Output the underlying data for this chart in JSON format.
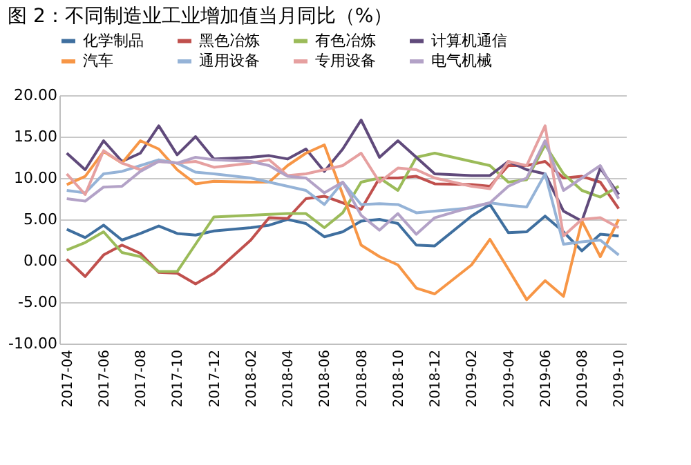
{
  "chart_data": {
    "type": "line",
    "title": "图 2：不同制造业工业增加值当月同比（%）",
    "categories": [
      "2017-04",
      null,
      "2017-06",
      null,
      "2017-08",
      null,
      "2017-10",
      null,
      "2017-12",
      null,
      "2018-02",
      null,
      "2018-04",
      null,
      "2018-06",
      null,
      "2018-08",
      null,
      "2018-10",
      null,
      "2018-12",
      null,
      "2019-02",
      null,
      "2019-04",
      null,
      "2019-06",
      null,
      "2019-08",
      null,
      "2019-10"
    ],
    "series": [
      {
        "name": "化学制品",
        "color": "#3f6f9f",
        "values": [
          3.8,
          2.8,
          4.3,
          2.5,
          3.3,
          4.2,
          3.3,
          3.1,
          3.6,
          null,
          4.0,
          4.3,
          5.0,
          4.5,
          2.9,
          3.5,
          4.8,
          5.0,
          4.5,
          1.9,
          1.8,
          null,
          5.4,
          6.8,
          3.4,
          3.5,
          5.4,
          3.5,
          1.2,
          3.2,
          3.0
        ]
      },
      {
        "name": "黑色冶炼",
        "color": "#c0504d",
        "values": [
          0.2,
          -1.9,
          0.7,
          1.9,
          0.9,
          -1.4,
          -1.5,
          -2.8,
          -1.5,
          null,
          2.5,
          5.2,
          5.1,
          7.5,
          7.8,
          7.0,
          6.2,
          10.0,
          10.0,
          10.2,
          9.3,
          null,
          9.2,
          9.0,
          11.5,
          11.5,
          12.0,
          10.0,
          10.2,
          9.5,
          6.3
        ]
      },
      {
        "name": "有色冶炼",
        "color": "#9bbb59",
        "values": [
          1.3,
          2.2,
          3.5,
          1.0,
          0.5,
          -1.3,
          -1.3,
          2.0,
          5.3,
          null,
          5.5,
          5.6,
          5.7,
          5.7,
          4.0,
          5.8,
          9.5,
          10.0,
          8.5,
          12.5,
          13.0,
          null,
          12.0,
          11.5,
          9.5,
          9.8,
          14.0,
          10.5,
          8.5,
          7.7,
          9.0
        ]
      },
      {
        "name": "计算机通信",
        "color": "#604a7b",
        "values": [
          13.0,
          11.0,
          14.5,
          12.0,
          13.0,
          16.3,
          12.8,
          15.0,
          12.3,
          null,
          12.5,
          12.7,
          12.3,
          13.5,
          10.8,
          13.5,
          17.0,
          12.5,
          14.5,
          12.5,
          10.5,
          null,
          10.3,
          10.3,
          12.0,
          11.0,
          10.5,
          6.0,
          4.8,
          11.2,
          8.0
        ]
      },
      {
        "name": "汽车",
        "color": "#f79646",
        "values": [
          9.2,
          10.2,
          13.2,
          11.8,
          14.5,
          13.5,
          11.0,
          9.3,
          9.6,
          null,
          9.5,
          9.5,
          11.5,
          13.0,
          14.0,
          8.0,
          1.9,
          0.5,
          -0.5,
          -3.3,
          -4.0,
          null,
          -0.5,
          2.6,
          -1.0,
          -4.7,
          -2.4,
          -4.3,
          4.8,
          0.5,
          5.0
        ]
      },
      {
        "name": "通用设备",
        "color": "#95b3d7",
        "values": [
          8.5,
          8.2,
          10.5,
          10.8,
          11.5,
          12.2,
          11.8,
          10.7,
          10.5,
          null,
          10.0,
          9.5,
          9.0,
          8.5,
          6.8,
          9.5,
          6.8,
          6.9,
          6.8,
          5.8,
          6.0,
          null,
          6.4,
          7.0,
          6.7,
          6.5,
          10.5,
          2.0,
          2.3,
          2.5,
          0.7
        ]
      },
      {
        "name": "专用设备",
        "color": "#e6a0a0",
        "values": [
          10.5,
          8.0,
          13.3,
          11.8,
          11.0,
          12.0,
          11.8,
          12.0,
          11.3,
          null,
          11.8,
          12.2,
          10.3,
          10.5,
          11.0,
          11.5,
          13.0,
          9.5,
          11.2,
          11.0,
          10.0,
          null,
          9.0,
          8.7,
          12.0,
          11.5,
          16.3,
          3.0,
          5.0,
          5.2,
          4.0
        ]
      },
      {
        "name": "电气机械",
        "color": "#b3a2c7",
        "values": [
          7.5,
          7.2,
          8.9,
          9.0,
          10.8,
          12.0,
          11.8,
          12.5,
          12.2,
          null,
          12.0,
          11.5,
          10.2,
          10.0,
          8.2,
          9.5,
          5.5,
          3.7,
          5.7,
          3.2,
          5.2,
          null,
          6.5,
          7.0,
          9.0,
          10.0,
          14.5,
          8.5,
          10.0,
          11.5,
          7.5
        ]
      }
    ],
    "ylim": [
      -10,
      20
    ],
    "yticks": [
      {
        "value": -10,
        "label": "-10.00"
      },
      {
        "value": -5,
        "label": "-5.00"
      },
      {
        "value": 0,
        "label": "0.00"
      },
      {
        "value": 5,
        "label": "5.00"
      },
      {
        "value": 10,
        "label": "10.00"
      },
      {
        "value": 15,
        "label": "15.00"
      },
      {
        "value": 20,
        "label": "20.00"
      }
    ],
    "grid": "y",
    "legend": "top"
  }
}
